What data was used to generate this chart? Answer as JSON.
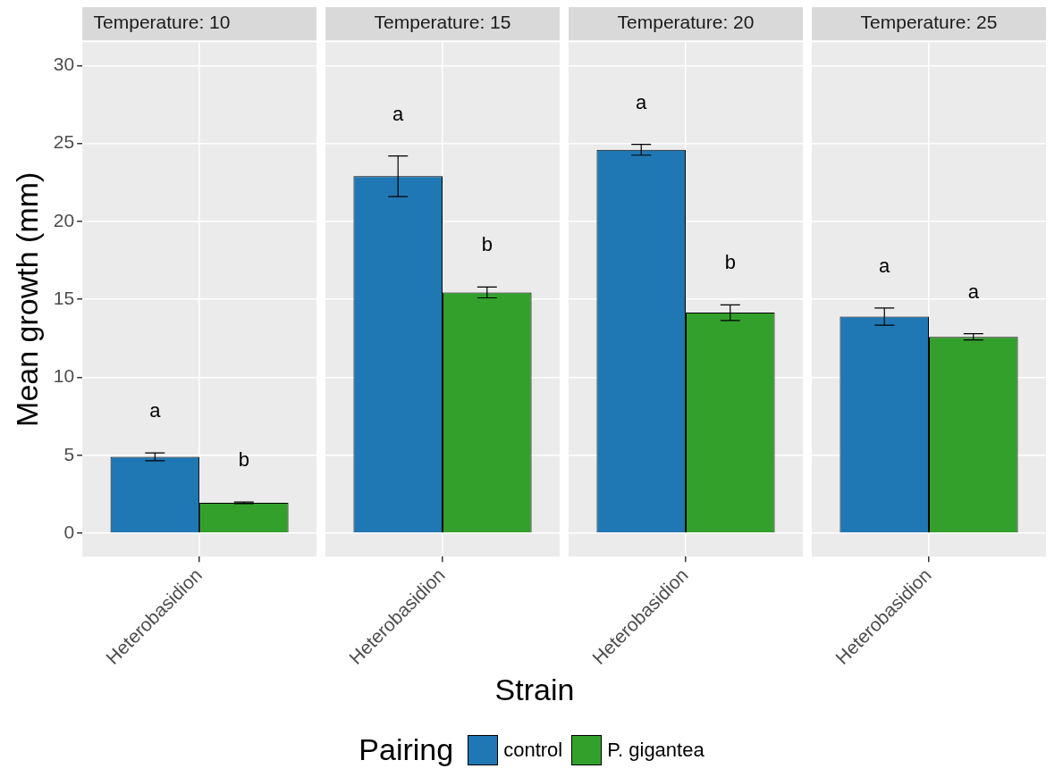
{
  "chart_data": [
    {
      "type": "bar",
      "title": "Temperature: 10",
      "ylabel": "Mean growth (mm)",
      "legend_title": "Pairing",
      "legend": "bottom",
      "categories": [
        "Heterobasidion"
      ],
      "ylim": [
        -1.5,
        31.5
      ],
      "yticks": [
        0,
        5,
        10,
        15,
        20,
        25,
        30
      ],
      "grid": true,
      "series": [
        {
          "name": "control",
          "color": "#1f78b4",
          "values": [
            4.9
          ],
          "errors": [
            0.25
          ]
        },
        {
          "name": "P. gigantea",
          "color": "#33a02c",
          "values": [
            1.95
          ],
          "errors": [
            0.05
          ]
        }
      ],
      "annotations": [
        "a",
        "b"
      ]
    },
    {
      "type": "bar",
      "title": "Temperature: 15",
      "xlabel": "Strain",
      "categories": [
        "Heterobasidion"
      ],
      "ylim": [
        -1.5,
        31.5
      ],
      "yticks": [
        0,
        5,
        10,
        15,
        20,
        25,
        30
      ],
      "grid": true,
      "tick_labels": "x",
      "series": [
        {
          "name": "control",
          "color": "#1f78b4",
          "values": [
            22.9
          ],
          "errors": [
            1.3
          ]
        },
        {
          "name": "P. gigantea",
          "color": "#33a02c",
          "values": [
            15.45
          ],
          "errors": [
            0.35
          ]
        }
      ],
      "annotations": [
        "a",
        "b"
      ]
    },
    {
      "type": "bar",
      "title": "Temperature: 20",
      "categories": [
        "Heterobasidion"
      ],
      "ylim": [
        -1.5,
        31.5
      ],
      "yticks": [
        0,
        5,
        10,
        15,
        20,
        25,
        30
      ],
      "grid": true,
      "tick_labels": "x",
      "series": [
        {
          "name": "control",
          "color": "#1f78b4",
          "values": [
            24.6
          ],
          "errors": [
            0.35
          ]
        },
        {
          "name": "P. gigantea",
          "color": "#33a02c",
          "values": [
            14.15
          ],
          "errors": [
            0.5
          ]
        }
      ],
      "annotations": [
        "a",
        "b"
      ]
    },
    {
      "type": "bar",
      "title": "Temperature: 25",
      "categories": [
        "Heterobasidion"
      ],
      "ylim": [
        -1.5,
        31.5
      ],
      "yticks": [
        0,
        5,
        10,
        15,
        20,
        25,
        30
      ],
      "grid": true,
      "tick_labels": "x",
      "series": [
        {
          "name": "control",
          "color": "#1f78b4",
          "values": [
            13.9
          ],
          "errors": [
            0.55
          ]
        },
        {
          "name": "P. gigantea",
          "color": "#33a02c",
          "values": [
            12.6
          ],
          "errors": [
            0.2
          ]
        }
      ],
      "annotations": [
        "a",
        "a"
      ]
    }
  ]
}
